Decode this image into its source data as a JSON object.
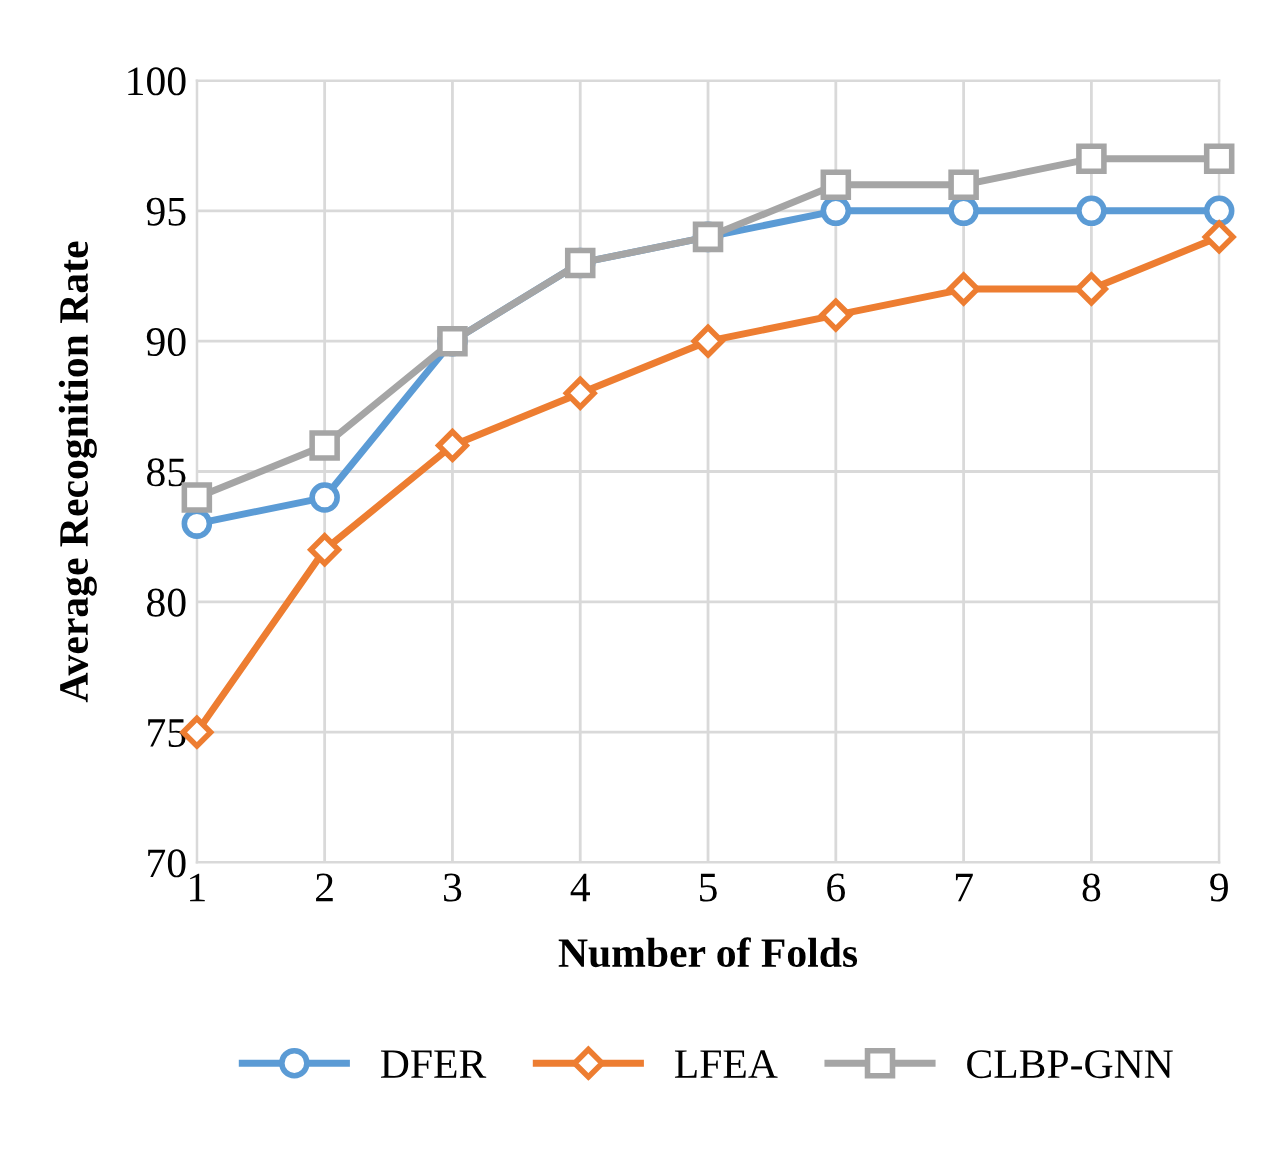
{
  "chart_data": {
    "type": "line",
    "xlabel": "Number of Folds",
    "ylabel": "Average Recognition Rate",
    "x": [
      1,
      2,
      3,
      4,
      5,
      6,
      7,
      8,
      9
    ],
    "series": [
      {
        "name": "DFER",
        "color": "#5b9bd5",
        "marker": "circle",
        "values": [
          83,
          84,
          90,
          93,
          94,
          95,
          95,
          95,
          95
        ]
      },
      {
        "name": "LFEA",
        "color": "#ed7d31",
        "marker": "diamond",
        "values": [
          75,
          82,
          86,
          88,
          90,
          91,
          92,
          92,
          94
        ]
      },
      {
        "name": "CLBP-GNN",
        "color": "#a5a5a5",
        "marker": "square",
        "values": [
          84,
          86,
          90,
          93,
          94,
          96,
          96,
          97,
          97
        ]
      }
    ],
    "xlim": [
      1,
      9
    ],
    "xticks": [
      1,
      2,
      3,
      4,
      5,
      6,
      7,
      8,
      9
    ],
    "ylim": [
      70,
      100
    ],
    "yticks": [
      70,
      75,
      80,
      85,
      90,
      95,
      100
    ],
    "grid": true,
    "legend": "bottom",
    "line_style": "solid"
  }
}
